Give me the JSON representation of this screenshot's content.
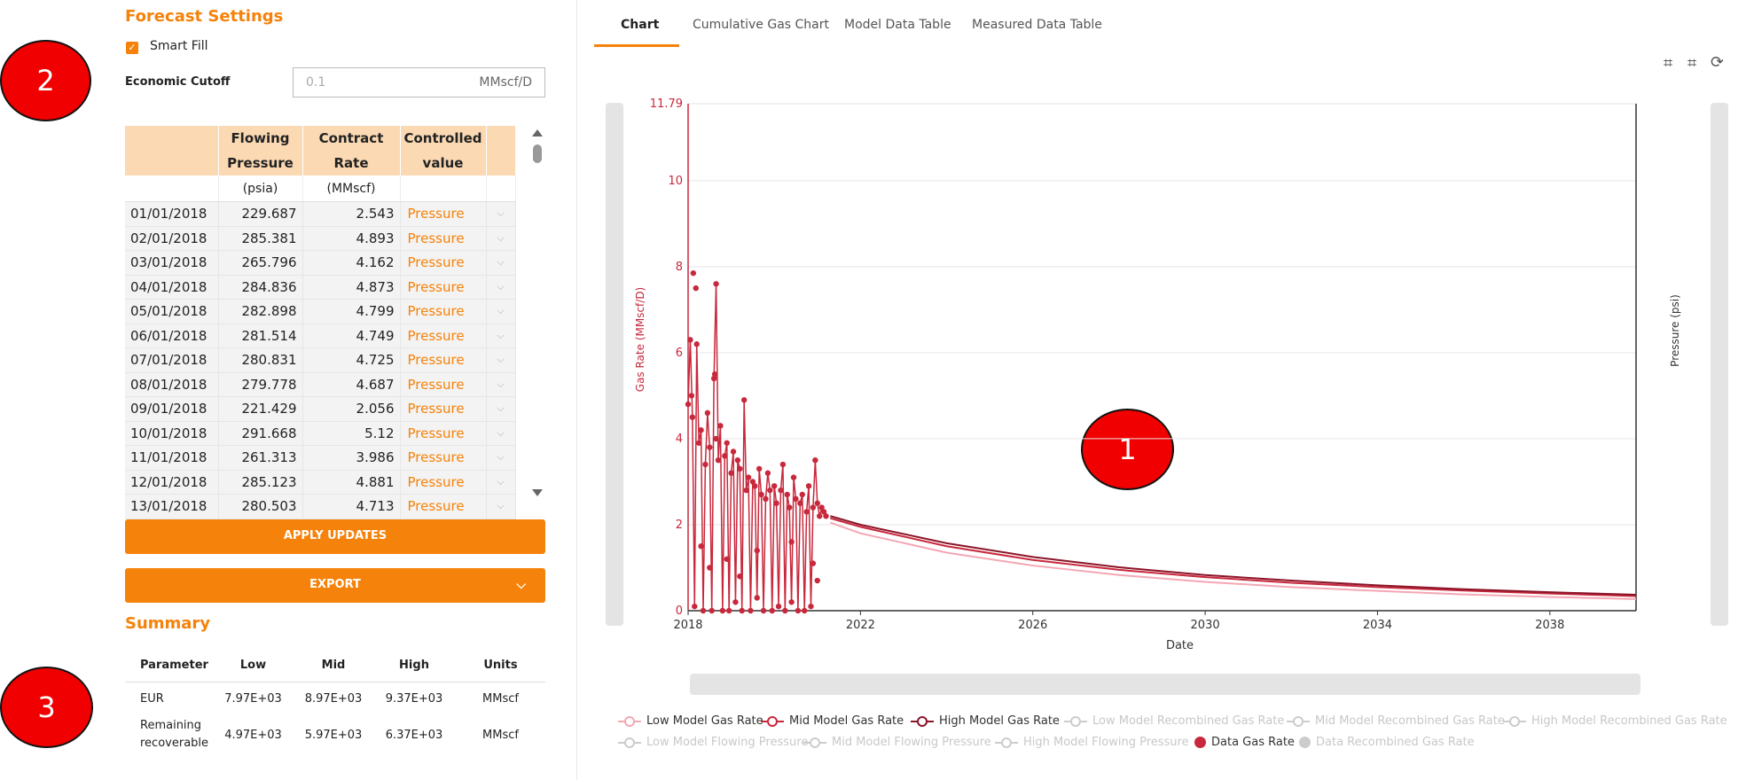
{
  "forecast": {
    "title": "Forecast Settings",
    "smart_fill_label": "Smart Fill",
    "smart_fill_checked": true,
    "economic_cutoff_label": "Economic Cutoff",
    "economic_cutoff_value": "0.1",
    "economic_cutoff_unit": "MMscf/D"
  },
  "table": {
    "headers": [
      {
        "line1": "",
        "line2": ""
      },
      {
        "line1": "Flowing",
        "line2": "Pressure"
      },
      {
        "line1": "Contract",
        "line2": "Rate"
      },
      {
        "line1": "Controlled",
        "line2": "value"
      }
    ],
    "units": [
      "",
      "(psia)",
      "(MMscf)",
      ""
    ],
    "rows": [
      [
        "01/01/2018",
        "229.687",
        "2.543",
        "Pressure"
      ],
      [
        "02/01/2018",
        "285.381",
        "4.893",
        "Pressure"
      ],
      [
        "03/01/2018",
        "265.796",
        "4.162",
        "Pressure"
      ],
      [
        "04/01/2018",
        "284.836",
        "4.873",
        "Pressure"
      ],
      [
        "05/01/2018",
        "282.898",
        "4.799",
        "Pressure"
      ],
      [
        "06/01/2018",
        "281.514",
        "4.749",
        "Pressure"
      ],
      [
        "07/01/2018",
        "280.831",
        "4.725",
        "Pressure"
      ],
      [
        "08/01/2018",
        "279.778",
        "4.687",
        "Pressure"
      ],
      [
        "09/01/2018",
        "221.429",
        "2.056",
        "Pressure"
      ],
      [
        "10/01/2018",
        "291.668",
        "5.12",
        "Pressure"
      ],
      [
        "11/01/2018",
        "261.313",
        "3.986",
        "Pressure"
      ],
      [
        "12/01/2018",
        "285.123",
        "4.881",
        "Pressure"
      ],
      [
        "13/01/2018",
        "280.503",
        "4.713",
        "Pressure"
      ]
    ]
  },
  "buttons": {
    "apply_updates": "APPLY UPDATES",
    "export": "EXPORT"
  },
  "summary": {
    "title": "Summary",
    "headers": [
      "Parameter",
      "Low",
      "Mid",
      "High",
      "Units"
    ],
    "rows": [
      {
        "param": "EUR",
        "low": "7.97E+03",
        "mid": "8.97E+03",
        "high": "9.37E+03",
        "units": "MMscf"
      },
      {
        "param": "Remaining recoverable",
        "low": "4.97E+03",
        "mid": "5.97E+03",
        "high": "6.37E+03",
        "units": "MMscf"
      }
    ]
  },
  "badges": [
    "1",
    "2",
    "3"
  ],
  "tabs": [
    "Chart",
    "Cumulative Gas Chart",
    "Model Data Table",
    "Measured Data Table"
  ],
  "active_tab": "Chart",
  "legend": [
    {
      "label": "Low Model Gas Rate",
      "color": "#f4a7b4",
      "style": "line-marker",
      "active": true
    },
    {
      "label": "Mid Model Gas Rate",
      "color": "#c8283c",
      "style": "line-marker",
      "active": true
    },
    {
      "label": "High Model Gas Rate",
      "color": "#8b1428",
      "style": "line-marker",
      "active": true
    },
    {
      "label": "Low Model Recombined Gas Rate",
      "color": "#cccccc",
      "style": "line-marker",
      "active": false
    },
    {
      "label": "Mid Model Recombined Gas Rate",
      "color": "#cccccc",
      "style": "line-marker",
      "active": false
    },
    {
      "label": "High Model Recombined Gas Rate",
      "color": "#cccccc",
      "style": "line-marker",
      "active": false
    },
    {
      "label": "Low Model Flowing Pressure",
      "color": "#cccccc",
      "style": "line-marker",
      "active": false
    },
    {
      "label": "Mid Model Flowing Pressure",
      "color": "#cccccc",
      "style": "line-marker",
      "active": false
    },
    {
      "label": "High Model Flowing Pressure",
      "color": "#cccccc",
      "style": "line-marker",
      "active": false
    },
    {
      "label": "Data Gas Rate",
      "color": "#c8283c",
      "style": "dot",
      "active": true
    },
    {
      "label": "Data Recombined Gas Rate",
      "color": "#cccccc",
      "style": "dot",
      "active": false
    }
  ],
  "chart_data": {
    "type": "line",
    "xlabel": "Date",
    "ylabel": "Gas Rate (MMscf/D)",
    "y2label": "Pressure (psi)",
    "xlim": [
      2018,
      2040
    ],
    "ylim": [
      0,
      11.79
    ],
    "x_ticks": [
      "2018",
      "2022",
      "2026",
      "2030",
      "2034",
      "2038"
    ],
    "y_ticks": [
      "0",
      "2",
      "4",
      "6",
      "8",
      "10",
      "11.79"
    ],
    "series": [
      {
        "name": "Low Model Gas Rate",
        "color": "#f4a7b4",
        "x": [
          2021.3,
          2022,
          2024,
          2026,
          2028,
          2030,
          2032,
          2034,
          2036,
          2038,
          2040
        ],
        "y": [
          2.05,
          1.8,
          1.35,
          1.05,
          0.83,
          0.67,
          0.55,
          0.46,
          0.38,
          0.32,
          0.27
        ]
      },
      {
        "name": "Mid Model Gas Rate",
        "color": "#c8283c",
        "x": [
          2021.3,
          2022,
          2024,
          2026,
          2028,
          2030,
          2032,
          2034,
          2036,
          2038,
          2040
        ],
        "y": [
          2.15,
          1.95,
          1.5,
          1.18,
          0.95,
          0.78,
          0.65,
          0.55,
          0.47,
          0.4,
          0.34
        ]
      },
      {
        "name": "High Model Gas Rate",
        "color": "#8b1428",
        "x": [
          2021.3,
          2022,
          2024,
          2026,
          2028,
          2030,
          2032,
          2034,
          2036,
          2038,
          2040
        ],
        "y": [
          2.2,
          2.0,
          1.57,
          1.25,
          1.01,
          0.83,
          0.7,
          0.59,
          0.5,
          0.43,
          0.37
        ]
      },
      {
        "name": "Data Gas Rate",
        "color": "#c8283c",
        "style": "scatter",
        "x": [
          2018.0,
          2018.05,
          2018.1,
          2018.15,
          2018.2,
          2018.25,
          2018.3,
          2018.35,
          2018.4,
          2018.45,
          2018.5,
          2018.55,
          2018.6,
          2018.65,
          2018.7,
          2018.75,
          2018.8,
          2018.85,
          2018.9,
          2018.95,
          2019.0,
          2019.05,
          2019.1,
          2019.15,
          2019.2,
          2019.25,
          2019.3,
          2019.35,
          2019.4,
          2019.45,
          2019.5,
          2019.55,
          2019.6,
          2019.65,
          2019.7,
          2019.75,
          2019.8,
          2019.85,
          2019.9,
          2019.95,
          2020.0,
          2020.05,
          2020.1,
          2020.15,
          2020.2,
          2020.25,
          2020.3,
          2020.35,
          2020.4,
          2020.45,
          2020.5,
          2020.55,
          2020.6,
          2020.65,
          2020.7,
          2020.75,
          2020.8,
          2020.85,
          2020.9,
          2020.95,
          2021.0,
          2021.05,
          2021.1,
          2021.15,
          2021.2,
          2018.12,
          2018.18,
          2018.62,
          2018.65,
          2018.08,
          2018.3,
          2018.5,
          2018.9,
          2019.2,
          2019.6,
          2020.4,
          2020.9,
          2021.0
        ],
        "y": [
          4.8,
          6.3,
          4.5,
          0.1,
          6.2,
          3.9,
          4.2,
          0.0,
          3.4,
          4.6,
          3.8,
          0.0,
          5.4,
          7.6,
          3.5,
          4.3,
          0.0,
          3.6,
          3.9,
          0.0,
          3.2,
          3.7,
          0.2,
          3.5,
          3.3,
          0.0,
          4.9,
          2.8,
          3.1,
          0.0,
          3.0,
          2.9,
          0.3,
          3.3,
          2.7,
          0.0,
          2.6,
          3.2,
          2.8,
          0.0,
          2.9,
          2.5,
          0.1,
          2.8,
          3.4,
          0.0,
          2.7,
          2.4,
          0.2,
          3.1,
          2.6,
          0.0,
          2.5,
          2.7,
          0.0,
          2.3,
          2.9,
          0.1,
          2.4,
          3.5,
          2.5,
          2.2,
          2.4,
          2.3,
          2.2,
          7.85,
          7.5,
          5.5,
          4.0,
          5.0,
          1.5,
          1.0,
          1.2,
          0.8,
          1.4,
          1.6,
          1.1,
          0.7
        ]
      }
    ],
    "grid": true,
    "legend_position": "bottom"
  }
}
